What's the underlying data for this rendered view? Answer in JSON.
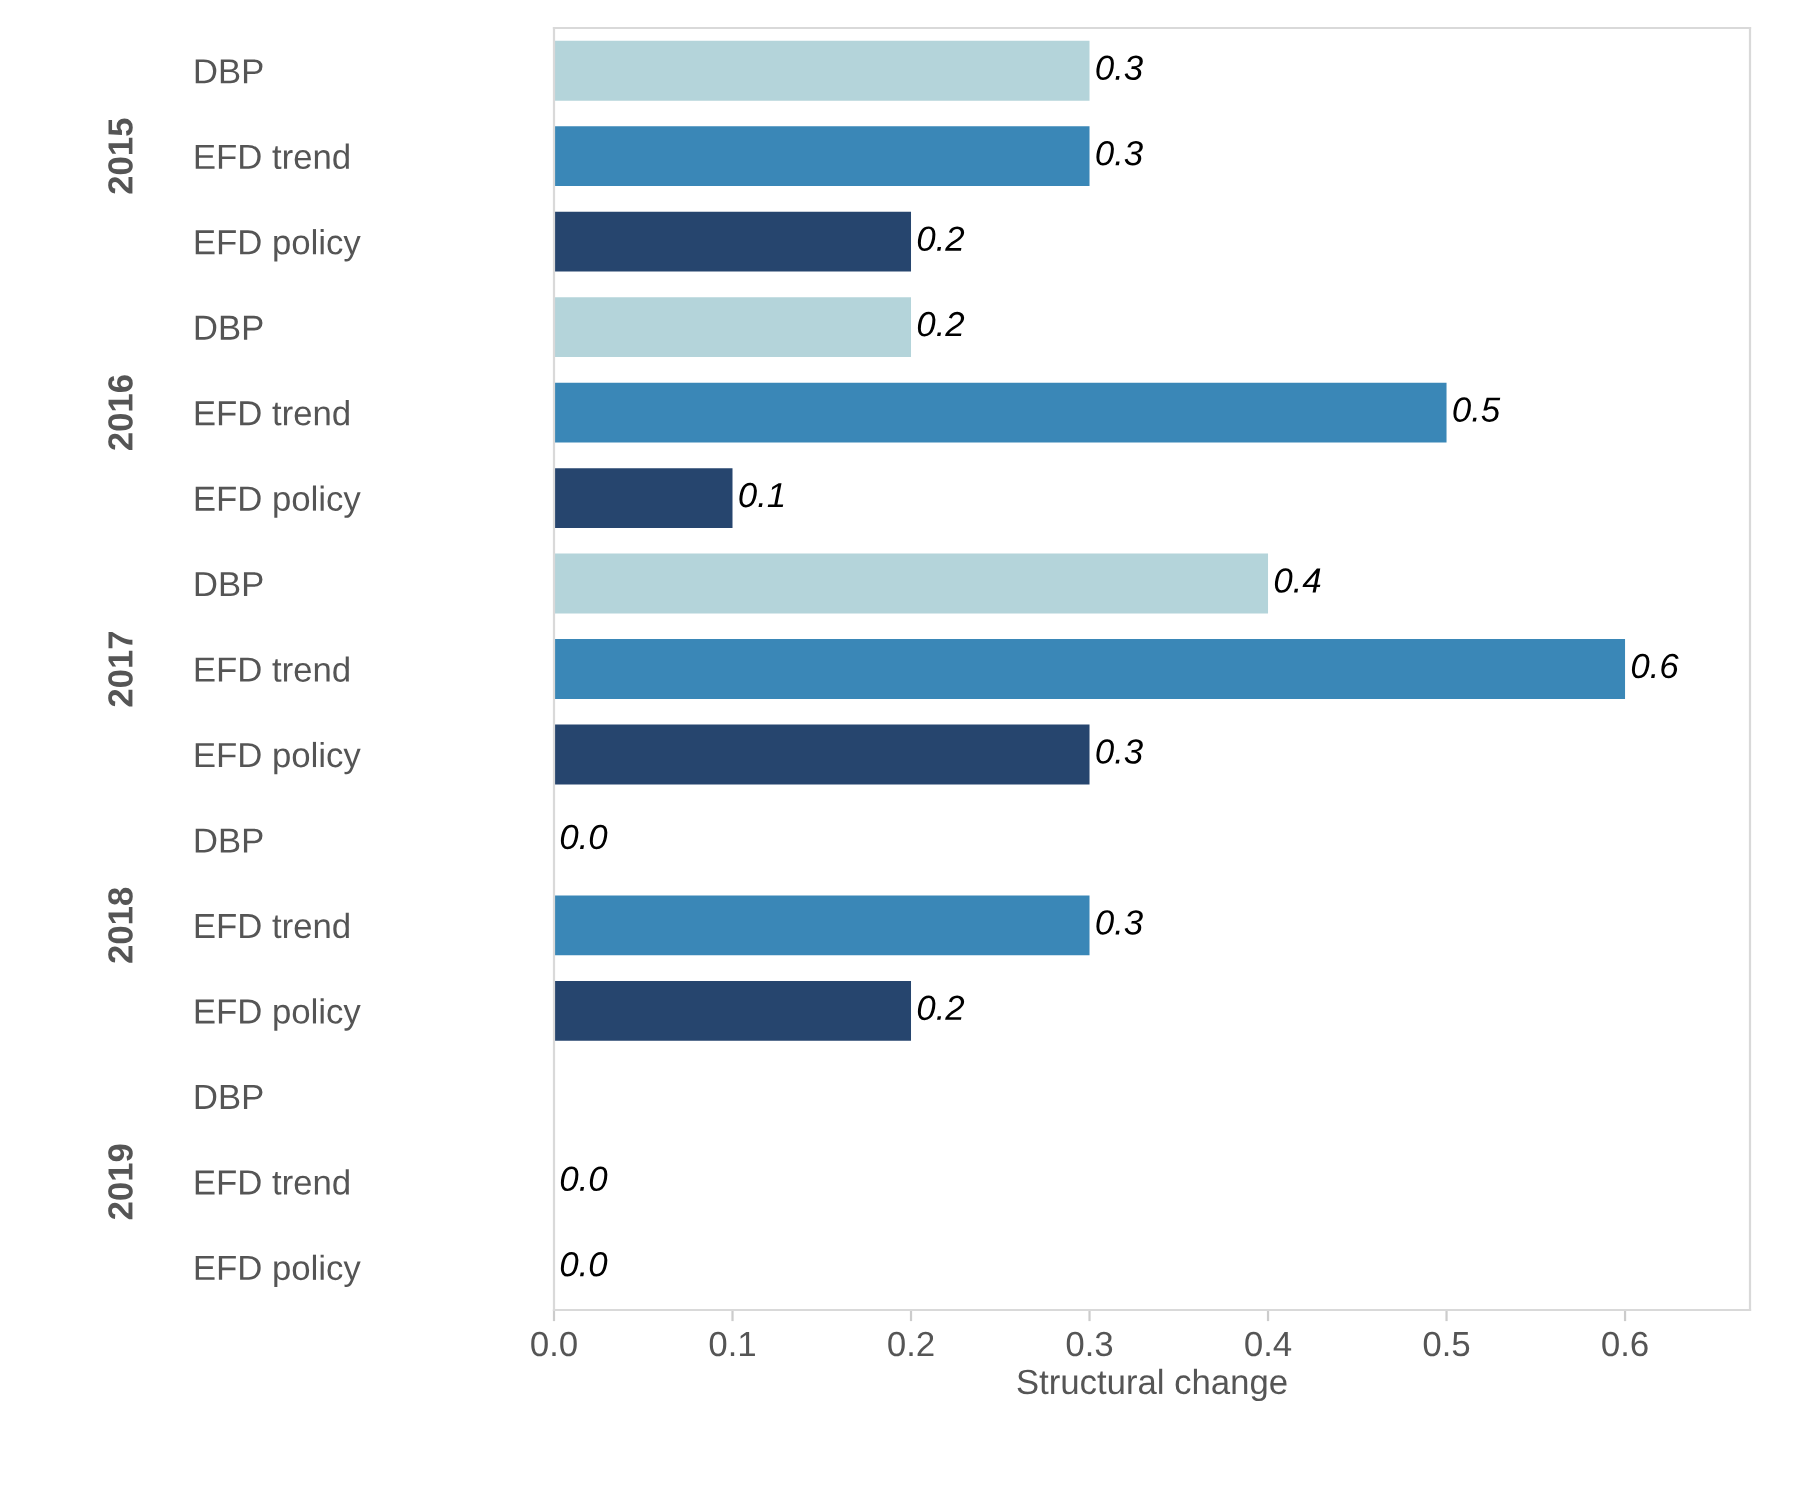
{
  "chart_data": {
    "type": "bar",
    "orientation": "horizontal",
    "xlabel": "Structural change",
    "annotations": [
      "2015",
      "2016",
      "2017",
      "2018",
      "2019"
    ],
    "categories": [
      "DBP",
      "EFD trend",
      "EFD policy",
      "DBP",
      "EFD trend",
      "EFD policy",
      "DBP",
      "EFD trend",
      "EFD policy",
      "DBP",
      "EFD trend",
      "EFD policy",
      "DBP",
      "EFD trend",
      "EFD policy"
    ],
    "values": [
      0.3,
      0.3,
      0.2,
      0.2,
      0.5,
      0.1,
      0.4,
      0.6,
      0.3,
      0.0,
      0.3,
      0.2,
      null,
      0.0,
      0.0
    ],
    "value_labels": [
      "0.3",
      "0.3",
      "0.2",
      "0.2",
      "0.5",
      "0.1",
      "0.4",
      "0.6",
      "0.3",
      "0.0",
      "0.3",
      "0.2",
      null,
      "0.0",
      "0.0"
    ],
    "colors": [
      "#b4d4da",
      "#3a87b7",
      "#26456e",
      "#b4d4da",
      "#3a87b7",
      "#26456e",
      "#b4d4da",
      "#3a87b7",
      "#26456e",
      "#b4d4da",
      "#3a87b7",
      "#26456e",
      "#b4d4da",
      "#3a87b7",
      "#26456e"
    ],
    "xlim": [
      0,
      0.67
    ],
    "xticks": [
      {
        "value": 0.0,
        "label": "0.0"
      },
      0.1,
      0.2,
      0.3,
      0.4,
      0.5,
      0.6
    ],
    "grid": false,
    "legend": false
  }
}
